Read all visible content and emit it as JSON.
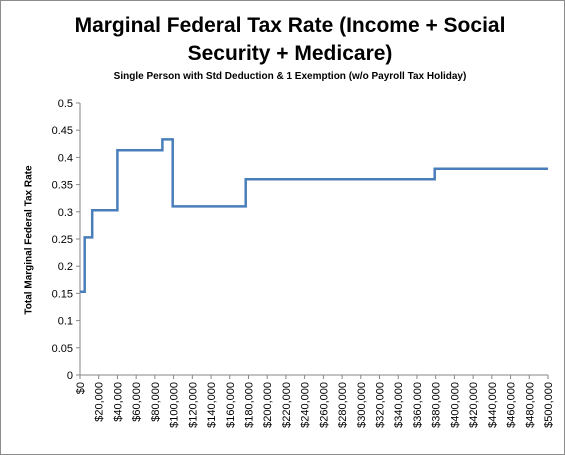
{
  "chart_data": {
    "type": "line",
    "title": "Marginal Federal Tax Rate (Income + Social Security + Medicare)",
    "title_lines": [
      "Marginal Federal Tax Rate (Income + Social",
      "Security + Medicare)"
    ],
    "subtitle": "Single Person with Std Deduction  & 1 Exemption (w/o Payroll Tax Holiday)",
    "xlabel": "",
    "ylabel": "Total Marginal  Federal Tax Rate",
    "xlim": [
      0,
      500000
    ],
    "ylim": [
      0,
      0.5
    ],
    "x_ticks": [
      "$0",
      "$20,000",
      "$40,000",
      "$60,000",
      "$80,000",
      "$100,000",
      "$120,000",
      "$140,000",
      "$160,000",
      "$180,000",
      "$200,000",
      "$220,000",
      "$240,000",
      "$260,000",
      "$280,000",
      "$300,000",
      "$320,000",
      "$340,000",
      "$360,000",
      "$380,000",
      "$400,000",
      "$420,000",
      "$440,000",
      "$460,000",
      "$480,000",
      "$500,000"
    ],
    "y_ticks": [
      "0",
      "0.05",
      "0.1",
      "0.15",
      "0.2",
      "0.25",
      "0.3",
      "0.35",
      "0.4",
      "0.45",
      "0.5"
    ],
    "grid": false,
    "legend": "none",
    "color": "#4a7ebb",
    "series": [
      {
        "x": [
          0,
          5000,
          5000,
          13000,
          13000,
          40000,
          40000,
          88000,
          88000,
          99000,
          99000,
          177000,
          177000,
          379000,
          379000,
          500000
        ],
        "y": [
          0.153,
          0.153,
          0.253,
          0.253,
          0.303,
          0.303,
          0.413,
          0.413,
          0.433,
          0.433,
          0.31,
          0.31,
          0.36,
          0.36,
          0.379,
          0.379
        ]
      }
    ]
  }
}
